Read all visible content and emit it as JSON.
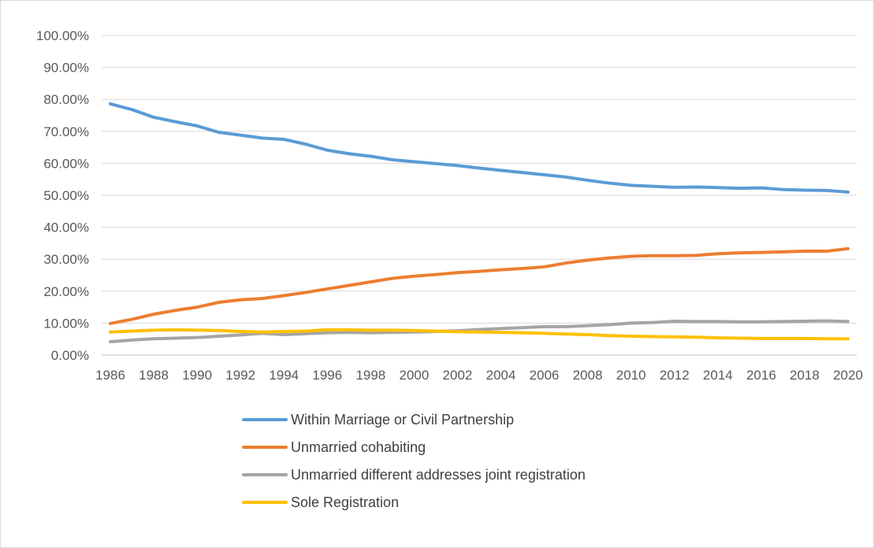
{
  "chart_data": {
    "type": "line",
    "title": "",
    "xlabel": "",
    "ylabel": "",
    "ylim": [
      0,
      100
    ],
    "y_ticks": [
      "0.00%",
      "10.00%",
      "20.00%",
      "30.00%",
      "40.00%",
      "50.00%",
      "60.00%",
      "70.00%",
      "80.00%",
      "90.00%",
      "100.00%"
    ],
    "x_tick_labels": [
      "1986",
      "1988",
      "1990",
      "1992",
      "1994",
      "1996",
      "1998",
      "2000",
      "2002",
      "2004",
      "2006",
      "2008",
      "2010",
      "2012",
      "2014",
      "2016",
      "2018",
      "2020"
    ],
    "x": [
      1986,
      1987,
      1988,
      1989,
      1990,
      1991,
      1992,
      1993,
      1994,
      1995,
      1996,
      1997,
      1998,
      1999,
      2000,
      2001,
      2002,
      2003,
      2004,
      2005,
      2006,
      2007,
      2008,
      2009,
      2010,
      2011,
      2012,
      2013,
      2014,
      2015,
      2016,
      2017,
      2018,
      2019,
      2020
    ],
    "grid": true,
    "legend_position": "bottom",
    "series": [
      {
        "name": "Within Marriage or Civil Partnership",
        "color": "#5b9bd5",
        "values": [
          78.6,
          76.8,
          74.4,
          73.0,
          71.7,
          69.7,
          68.8,
          67.9,
          67.5,
          66.0,
          64.1,
          63.0,
          62.2,
          61.1,
          60.5,
          59.9,
          59.3,
          58.5,
          57.8,
          57.1,
          56.4,
          55.7,
          54.7,
          53.8,
          53.1,
          52.8,
          52.5,
          52.6,
          52.4,
          52.2,
          52.3,
          51.8,
          51.6,
          51.5,
          51.0
        ]
      },
      {
        "name": "Unmarried cohabiting",
        "color": "#ed7d31",
        "values": [
          9.9,
          11.2,
          12.8,
          14.0,
          15.0,
          16.5,
          17.3,
          17.7,
          18.6,
          19.6,
          20.7,
          21.8,
          22.9,
          24.0,
          24.7,
          25.2,
          25.8,
          26.2,
          26.7,
          27.1,
          27.6,
          28.8,
          29.7,
          30.4,
          30.9,
          31.1,
          31.1,
          31.2,
          31.7,
          32.0,
          32.1,
          32.3,
          32.5,
          32.5,
          33.3
        ]
      },
      {
        "name": "Unmarried different addresses joint registration",
        "color": "#a5a5a5",
        "values": [
          4.2,
          4.7,
          5.1,
          5.3,
          5.5,
          5.9,
          6.3,
          6.8,
          6.4,
          6.7,
          7.0,
          7.1,
          7.0,
          7.1,
          7.2,
          7.4,
          7.6,
          8.0,
          8.3,
          8.6,
          8.9,
          8.9,
          9.2,
          9.5,
          10.0,
          10.2,
          10.6,
          10.5,
          10.5,
          10.4,
          10.4,
          10.5,
          10.6,
          10.7,
          10.5
        ]
      },
      {
        "name": "Sole Registration",
        "color": "#ffc000",
        "values": [
          7.2,
          7.5,
          7.8,
          7.9,
          7.8,
          7.7,
          7.4,
          7.2,
          7.4,
          7.5,
          7.9,
          7.9,
          7.8,
          7.8,
          7.7,
          7.5,
          7.3,
          7.2,
          7.1,
          7.0,
          6.8,
          6.6,
          6.4,
          6.1,
          5.9,
          5.8,
          5.7,
          5.6,
          5.4,
          5.3,
          5.2,
          5.2,
          5.2,
          5.1,
          5.1
        ]
      }
    ]
  }
}
